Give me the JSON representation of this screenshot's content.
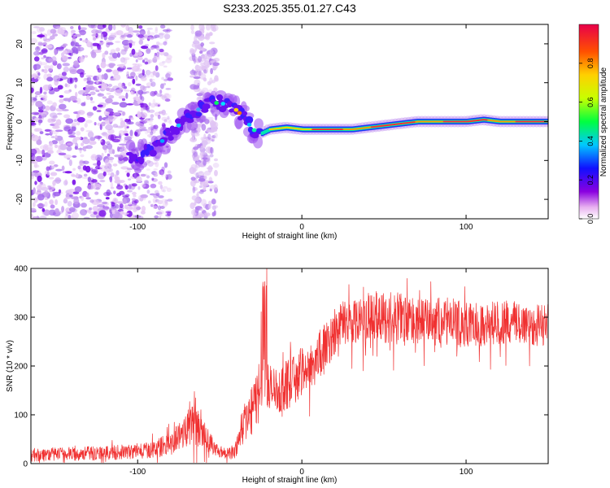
{
  "title": "S233.2025.355.01.27.C43",
  "chart_data": [
    {
      "type": "heatmap",
      "xlabel": "Height of straight line (km)",
      "ylabel": "Frequency (Hz)",
      "xlim": [
        -165,
        150
      ],
      "ylim": [
        -25,
        25
      ],
      "xticks": [
        -100,
        0,
        100
      ],
      "yticks": [
        -20,
        -10,
        0,
        10,
        20
      ],
      "colorbar": {
        "label": "Normalized spectral amplitude",
        "range": [
          0,
          1
        ],
        "ticks": [
          "0.0",
          "0.2",
          "0.4",
          "0.6",
          "0.8"
        ]
      },
      "ridge": {
        "x": [
          -100,
          -90,
          -80,
          -70,
          -60,
          -50,
          -40,
          -35,
          -30,
          -25,
          -20,
          -10,
          0,
          10,
          20,
          30,
          40,
          50,
          60,
          70,
          80,
          90,
          100,
          110,
          120,
          130,
          140,
          150
        ],
        "freq": [
          -9,
          -7,
          -3,
          1,
          4,
          5,
          3,
          1,
          -2,
          -3,
          -2,
          -1.5,
          -2,
          -2,
          -2,
          -2,
          -1.5,
          -1,
          -0.5,
          0,
          0,
          0,
          0,
          0.5,
          0,
          0,
          0,
          0
        ]
      }
    },
    {
      "type": "line",
      "xlabel": "Height of straight line (km)",
      "ylabel": "SNR (10 * v/v)",
      "xlim": [
        -165,
        150
      ],
      "ylim": [
        0,
        400
      ],
      "xticks": [
        -100,
        0,
        100
      ],
      "yticks": [
        0,
        100,
        200,
        300,
        400
      ],
      "series": [
        {
          "name": "SNR",
          "color": "#f03030",
          "x": [
            -165,
            -140,
            -120,
            -100,
            -90,
            -80,
            -75,
            -70,
            -66,
            -62,
            -55,
            -50,
            -45,
            -40,
            -38,
            -35,
            -30,
            -27,
            -24,
            -22,
            -20,
            -15,
            -10,
            -5,
            0,
            5,
            10,
            15,
            20,
            25,
            30,
            40,
            50,
            60,
            70,
            80,
            90,
            100,
            110,
            120,
            130,
            140,
            150
          ],
          "mean": [
            18,
            20,
            22,
            25,
            30,
            40,
            55,
            75,
            100,
            65,
            40,
            25,
            20,
            30,
            55,
            85,
            110,
            140,
            170,
            175,
            150,
            150,
            160,
            170,
            190,
            200,
            220,
            240,
            270,
            290,
            295,
            300,
            300,
            300,
            290,
            295,
            290,
            285,
            285,
            290,
            290,
            285,
            285
          ],
          "spread": [
            14,
            14,
            15,
            15,
            18,
            25,
            30,
            40,
            60,
            35,
            20,
            12,
            12,
            20,
            30,
            40,
            50,
            60,
            110,
            60,
            55,
            50,
            50,
            50,
            50,
            50,
            55,
            50,
            45,
            45,
            50,
            50,
            55,
            50,
            45,
            45,
            50,
            45,
            45,
            45,
            45,
            45,
            45
          ]
        }
      ]
    }
  ]
}
